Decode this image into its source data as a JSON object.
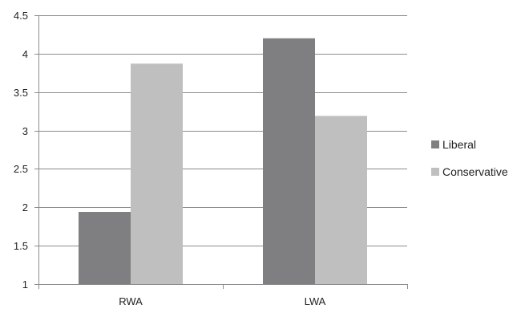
{
  "chart_data": {
    "type": "bar",
    "categories": [
      "RWA",
      "LWA"
    ],
    "series": [
      {
        "name": "Liberal",
        "values": [
          1.94,
          4.2
        ],
        "color": "#7f7f81"
      },
      {
        "name": "Conservative",
        "values": [
          3.87,
          3.19
        ],
        "color": "#bfbfbf"
      }
    ],
    "title": "",
    "xlabel": "",
    "ylabel": "",
    "ylim": [
      1,
      4.5
    ],
    "yticks": [
      "1",
      "1.5",
      "2",
      "2.5",
      "3",
      "3.5",
      "4",
      "4.5"
    ],
    "grid": true,
    "legend_position": "right"
  }
}
